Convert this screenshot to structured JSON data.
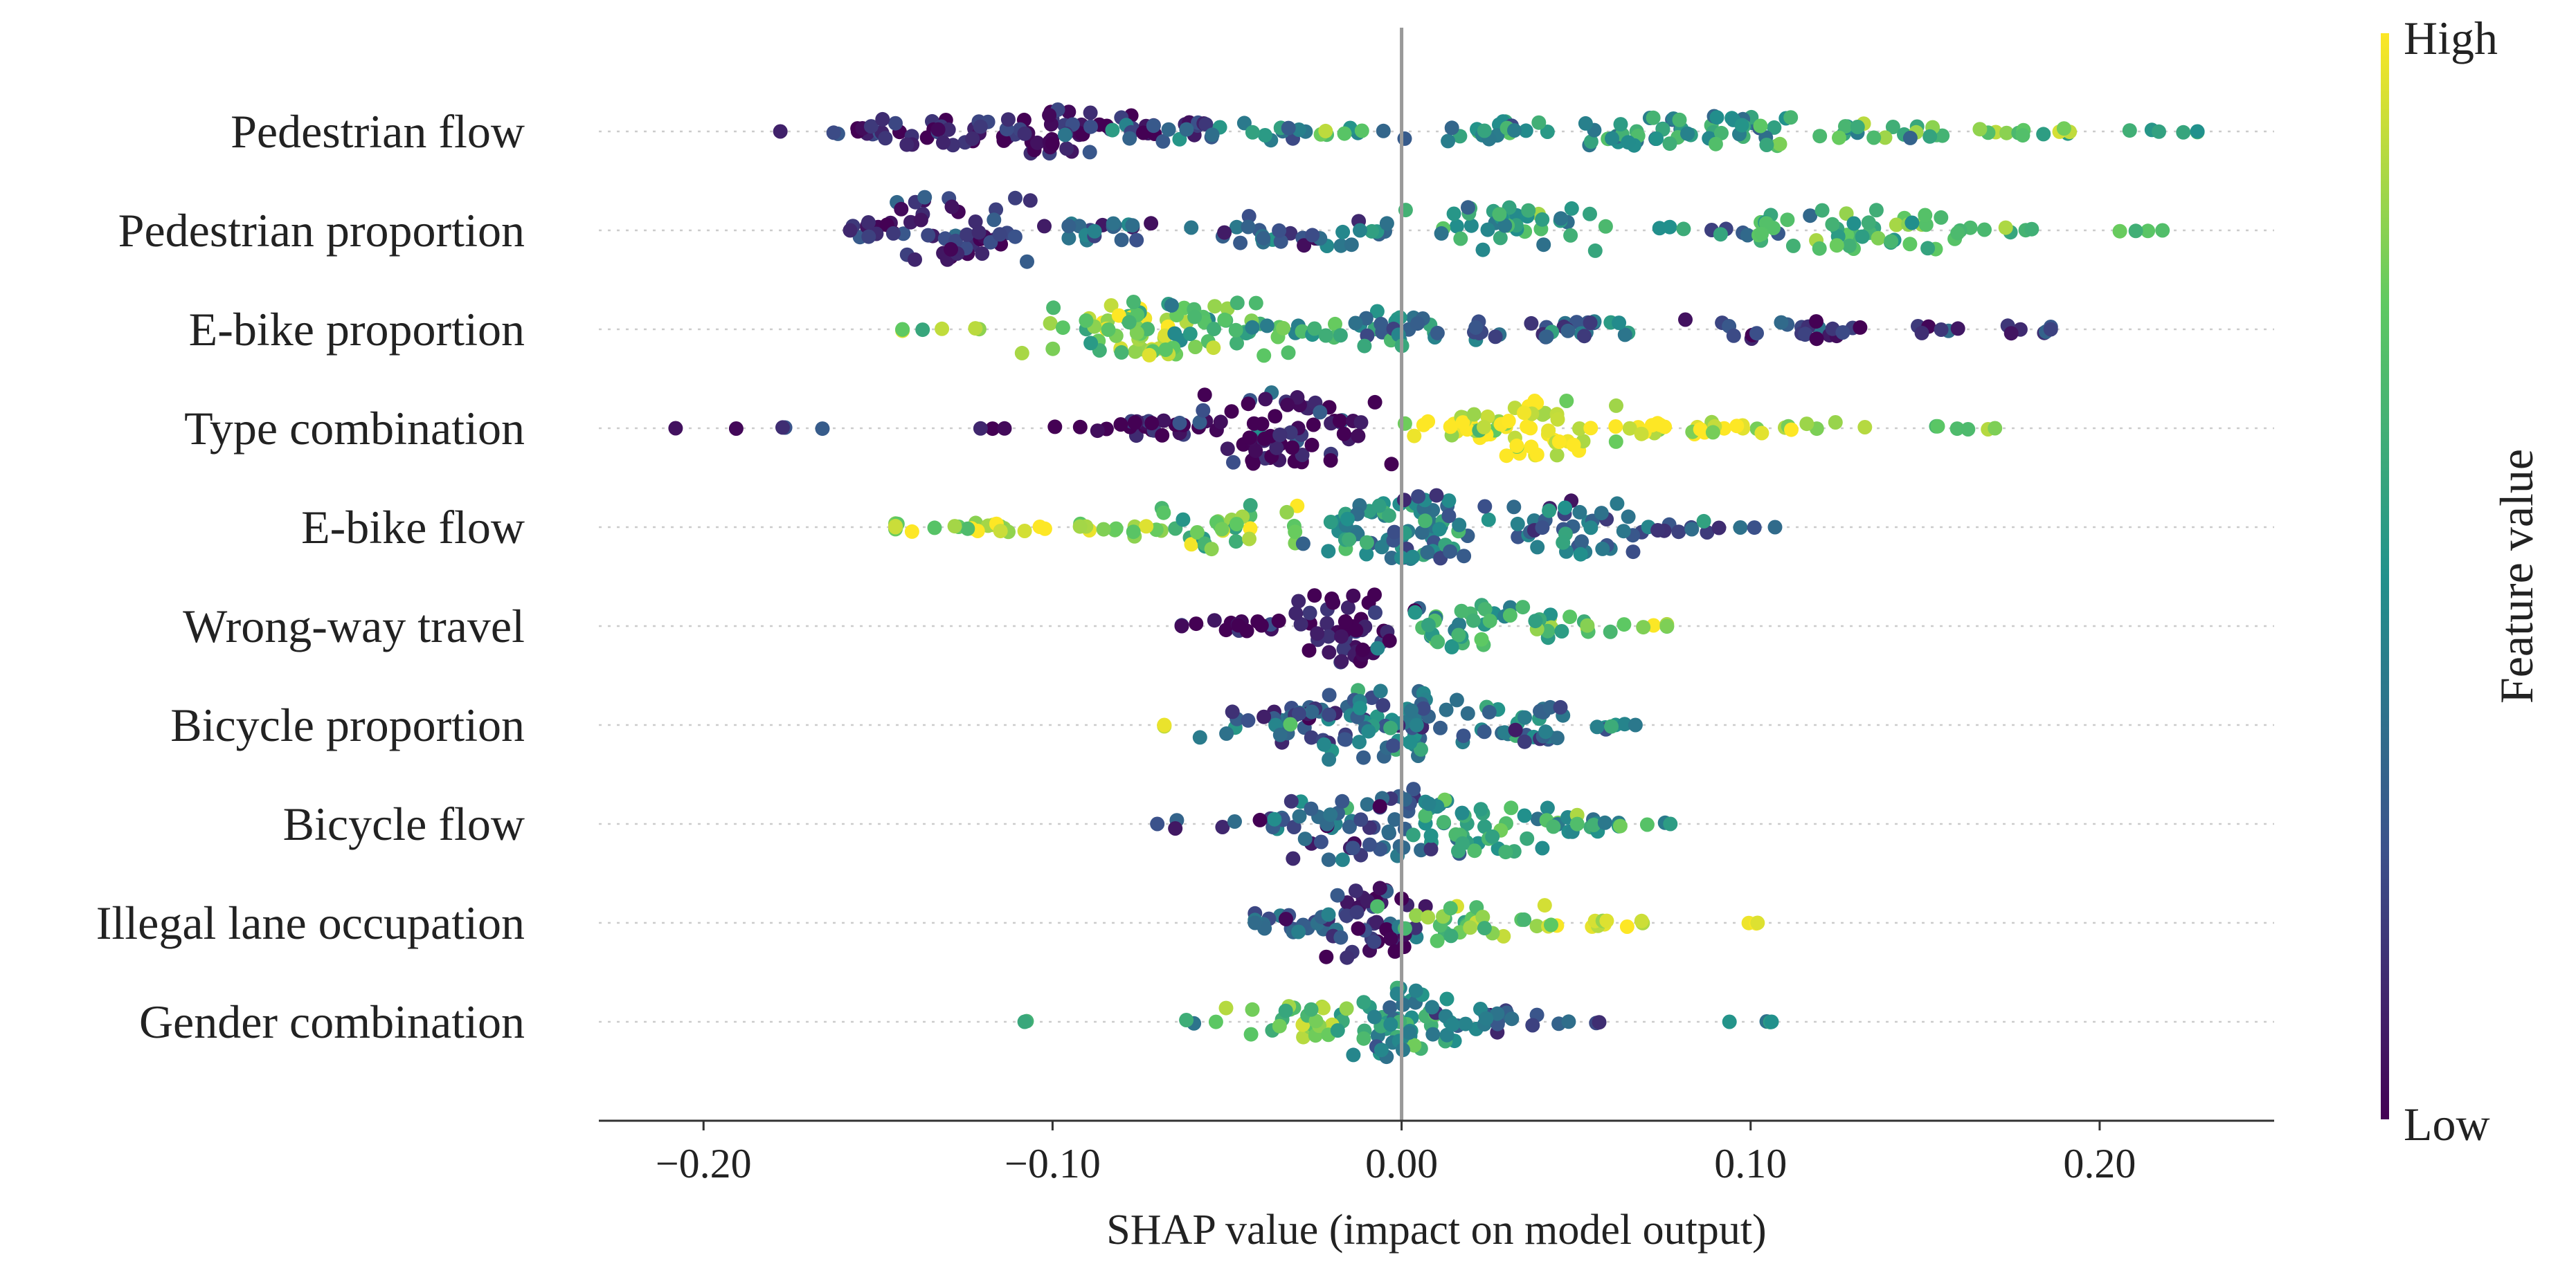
{
  "chart_data": {
    "type": "scatter",
    "subtype": "shap-beeswarm",
    "xlabel": "SHAP value (impact on model output)",
    "xlim": [
      -0.23,
      0.25
    ],
    "xticks": [
      -0.2,
      -0.1,
      0.0,
      0.1,
      0.2
    ],
    "xtick_labels": [
      "−0.20",
      "−0.10",
      "0.00",
      "0.10",
      "0.20"
    ],
    "zero_line": true,
    "colorbar": {
      "label": "Feature value",
      "high_label": "High",
      "low_label": "Low",
      "colormap": "viridis",
      "colors": [
        "#440154",
        "#3b528b",
        "#21918c",
        "#5ec962",
        "#fde725"
      ]
    },
    "features": [
      {
        "name": "Pedestrian flow",
        "min_shap": -0.178,
        "max_shap": 0.228,
        "clusters": [
          {
            "shap": -0.155,
            "spread": 0.006,
            "width": 0.08,
            "count": 10,
            "value": 0.1
          },
          {
            "shap": -0.13,
            "spread": 0.012,
            "width": 0.35,
            "count": 30,
            "value": 0.1
          },
          {
            "shap": -0.095,
            "spread": 0.014,
            "width": 0.55,
            "count": 45,
            "value": 0.08
          },
          {
            "shap": -0.06,
            "spread": 0.015,
            "width": 0.25,
            "count": 25,
            "value": 0.25
          },
          {
            "shap": -0.02,
            "spread": 0.012,
            "width": 0.1,
            "count": 15,
            "value": 0.55
          },
          {
            "shap": 0.025,
            "spread": 0.01,
            "width": 0.28,
            "count": 20,
            "value": 0.55
          },
          {
            "shap": 0.065,
            "spread": 0.012,
            "width": 0.35,
            "count": 28,
            "value": 0.5
          },
          {
            "shap": 0.1,
            "spread": 0.012,
            "width": 0.38,
            "count": 30,
            "value": 0.5
          },
          {
            "shap": 0.14,
            "spread": 0.012,
            "width": 0.2,
            "count": 18,
            "value": 0.6
          },
          {
            "shap": 0.18,
            "spread": 0.01,
            "width": 0.1,
            "count": 12,
            "value": 0.8
          },
          {
            "shap": 0.215,
            "spread": 0.008,
            "width": 0.04,
            "count": 5,
            "value": 0.5
          }
        ]
      },
      {
        "name": "Pedestrian proportion",
        "min_shap": -0.158,
        "max_shap": 0.218,
        "clusters": [
          {
            "shap": -0.15,
            "spread": 0.006,
            "width": 0.2,
            "count": 12,
            "value": 0.12
          },
          {
            "shap": -0.128,
            "spread": 0.01,
            "width": 0.85,
            "count": 45,
            "value": 0.12
          },
          {
            "shap": -0.085,
            "spread": 0.015,
            "width": 0.25,
            "count": 22,
            "value": 0.25
          },
          {
            "shap": -0.035,
            "spread": 0.012,
            "width": 0.4,
            "count": 25,
            "value": 0.3
          },
          {
            "shap": -0.005,
            "spread": 0.006,
            "width": 0.1,
            "count": 6,
            "value": 0.45
          },
          {
            "shap": 0.025,
            "spread": 0.015,
            "width": 0.6,
            "count": 40,
            "value": 0.55
          },
          {
            "shap": 0.09,
            "spread": 0.008,
            "width": 0.15,
            "count": 10,
            "value": 0.45
          },
          {
            "shap": 0.13,
            "spread": 0.015,
            "width": 0.55,
            "count": 45,
            "value": 0.65
          },
          {
            "shap": 0.17,
            "spread": 0.006,
            "width": 0.1,
            "count": 8,
            "value": 0.7
          },
          {
            "shap": 0.212,
            "spread": 0.004,
            "width": 0.02,
            "count": 3,
            "value": 0.7
          }
        ]
      },
      {
        "name": "E-bike proportion",
        "min_shap": -0.143,
        "max_shap": 0.186,
        "clusters": [
          {
            "shap": -0.13,
            "spread": 0.008,
            "width": 0.04,
            "count": 6,
            "value": 0.75
          },
          {
            "shap": -0.08,
            "spread": 0.01,
            "width": 0.6,
            "count": 40,
            "value": 0.88
          },
          {
            "shap": -0.06,
            "spread": 0.012,
            "width": 0.7,
            "count": 45,
            "value": 0.7
          },
          {
            "shap": -0.03,
            "spread": 0.01,
            "width": 0.25,
            "count": 18,
            "value": 0.6
          },
          {
            "shap": 0.0,
            "spread": 0.01,
            "width": 0.45,
            "count": 25,
            "value": 0.45
          },
          {
            "shap": 0.05,
            "spread": 0.018,
            "width": 0.2,
            "count": 30,
            "value": 0.25
          },
          {
            "shap": 0.11,
            "spread": 0.012,
            "width": 0.25,
            "count": 22,
            "value": 0.15
          },
          {
            "shap": 0.15,
            "spread": 0.006,
            "width": 0.1,
            "count": 6,
            "value": 0.15
          },
          {
            "shap": 0.18,
            "spread": 0.005,
            "width": 0.1,
            "count": 6,
            "value": 0.2
          }
        ]
      },
      {
        "name": "Type combination",
        "min_shap": -0.208,
        "max_shap": 0.17,
        "clusters": [
          {
            "shap": -0.19,
            "spread": 0.015,
            "width": 0.02,
            "count": 4,
            "value": 0.05
          },
          {
            "shap": -0.115,
            "spread": 0.004,
            "width": 0.02,
            "count": 3,
            "value": 0.15
          },
          {
            "shap": -0.07,
            "spread": 0.012,
            "width": 0.2,
            "count": 30,
            "value": 0.05
          },
          {
            "shap": -0.035,
            "spread": 0.01,
            "width": 0.9,
            "count": 60,
            "value": 0.03
          },
          {
            "shap": -0.015,
            "spread": 0.004,
            "width": 0.2,
            "count": 6,
            "value": 0.05
          },
          {
            "shap": 0.02,
            "spread": 0.012,
            "width": 0.35,
            "count": 30,
            "value": 0.95
          },
          {
            "shap": 0.04,
            "spread": 0.008,
            "width": 0.7,
            "count": 35,
            "value": 0.97
          },
          {
            "shap": 0.09,
            "spread": 0.02,
            "width": 0.15,
            "count": 35,
            "value": 0.93
          },
          {
            "shap": 0.16,
            "spread": 0.008,
            "width": 0.05,
            "count": 5,
            "value": 0.8
          }
        ]
      },
      {
        "name": "E-bike flow",
        "min_shap": -0.145,
        "max_shap": 0.107,
        "clusters": [
          {
            "shap": -0.12,
            "spread": 0.015,
            "width": 0.12,
            "count": 25,
            "value": 0.92
          },
          {
            "shap": -0.085,
            "spread": 0.008,
            "width": 0.1,
            "count": 8,
            "value": 0.85
          },
          {
            "shap": -0.05,
            "spread": 0.012,
            "width": 0.55,
            "count": 35,
            "value": 0.75
          },
          {
            "shap": -0.01,
            "spread": 0.012,
            "width": 0.7,
            "count": 45,
            "value": 0.45
          },
          {
            "shap": 0.01,
            "spread": 0.008,
            "width": 0.8,
            "count": 35,
            "value": 0.35
          },
          {
            "shap": 0.045,
            "spread": 0.012,
            "width": 0.7,
            "count": 40,
            "value": 0.35
          },
          {
            "shap": 0.08,
            "spread": 0.01,
            "width": 0.15,
            "count": 10,
            "value": 0.3
          },
          {
            "shap": 0.103,
            "spread": 0.004,
            "width": 0.02,
            "count": 2,
            "value": 0.35
          }
        ]
      },
      {
        "name": "Wrong-way travel",
        "min_shap": -0.063,
        "max_shap": 0.076,
        "clusters": [
          {
            "shap": -0.05,
            "spread": 0.01,
            "width": 0.15,
            "count": 15,
            "value": 0.03
          },
          {
            "shap": -0.015,
            "spread": 0.008,
            "width": 0.9,
            "count": 50,
            "value": 0.03
          },
          {
            "shap": 0.015,
            "spread": 0.01,
            "width": 0.55,
            "count": 30,
            "value": 0.55
          },
          {
            "shap": 0.045,
            "spread": 0.01,
            "width": 0.3,
            "count": 18,
            "value": 0.7
          },
          {
            "shap": 0.07,
            "spread": 0.005,
            "width": 0.05,
            "count": 5,
            "value": 0.8
          }
        ]
      },
      {
        "name": "Bicycle proportion",
        "min_shap": -0.068,
        "max_shap": 0.067,
        "clusters": [
          {
            "shap": -0.067,
            "spread": 0.001,
            "width": 0.05,
            "count": 2,
            "value": 0.97
          },
          {
            "shap": -0.03,
            "spread": 0.012,
            "width": 0.45,
            "count": 40,
            "value": 0.3
          },
          {
            "shap": 0.0,
            "spread": 0.01,
            "width": 0.9,
            "count": 60,
            "value": 0.4
          },
          {
            "shap": 0.035,
            "spread": 0.01,
            "width": 0.45,
            "count": 30,
            "value": 0.35
          },
          {
            "shap": 0.06,
            "spread": 0.006,
            "width": 0.05,
            "count": 4,
            "value": 0.4
          }
        ]
      },
      {
        "name": "Bicycle flow",
        "min_shap": -0.07,
        "max_shap": 0.077,
        "clusters": [
          {
            "shap": -0.045,
            "spread": 0.01,
            "width": 0.15,
            "count": 12,
            "value": 0.25
          },
          {
            "shap": -0.01,
            "spread": 0.012,
            "width": 0.9,
            "count": 55,
            "value": 0.3
          },
          {
            "shap": 0.02,
            "spread": 0.012,
            "width": 0.7,
            "count": 40,
            "value": 0.55
          },
          {
            "shap": 0.045,
            "spread": 0.008,
            "width": 0.25,
            "count": 15,
            "value": 0.55
          },
          {
            "shap": 0.07,
            "spread": 0.006,
            "width": 0.06,
            "count": 6,
            "value": 0.55
          }
        ]
      },
      {
        "name": "Illegal lane occupation",
        "min_shap": -0.042,
        "max_shap": 0.102,
        "clusters": [
          {
            "shap": -0.03,
            "spread": 0.01,
            "width": 0.25,
            "count": 25,
            "value": 0.35
          },
          {
            "shap": -0.008,
            "spread": 0.006,
            "width": 0.9,
            "count": 40,
            "value": 0.15
          },
          {
            "shap": 0.015,
            "spread": 0.01,
            "width": 0.45,
            "count": 30,
            "value": 0.75
          },
          {
            "shap": 0.055,
            "spread": 0.012,
            "width": 0.1,
            "count": 14,
            "value": 0.9
          },
          {
            "shap": 0.1,
            "spread": 0.002,
            "width": 0.02,
            "count": 2,
            "value": 0.95
          }
        ]
      },
      {
        "name": "Gender combination",
        "min_shap": -0.108,
        "max_shap": 0.106,
        "clusters": [
          {
            "shap": -0.108,
            "spread": 0.001,
            "width": 0.02,
            "count": 1,
            "value": 0.6
          },
          {
            "shap": -0.058,
            "spread": 0.004,
            "width": 0.05,
            "count": 3,
            "value": 0.7
          },
          {
            "shap": -0.025,
            "spread": 0.01,
            "width": 0.4,
            "count": 30,
            "value": 0.75
          },
          {
            "shap": 0.0,
            "spread": 0.008,
            "width": 0.9,
            "count": 50,
            "value": 0.5
          },
          {
            "shap": 0.025,
            "spread": 0.01,
            "width": 0.35,
            "count": 25,
            "value": 0.35
          },
          {
            "shap": 0.05,
            "spread": 0.004,
            "width": 0.02,
            "count": 2,
            "value": 0.1
          },
          {
            "shap": 0.095,
            "spread": 0.01,
            "width": 0.02,
            "count": 3,
            "value": 0.5
          }
        ]
      }
    ]
  }
}
